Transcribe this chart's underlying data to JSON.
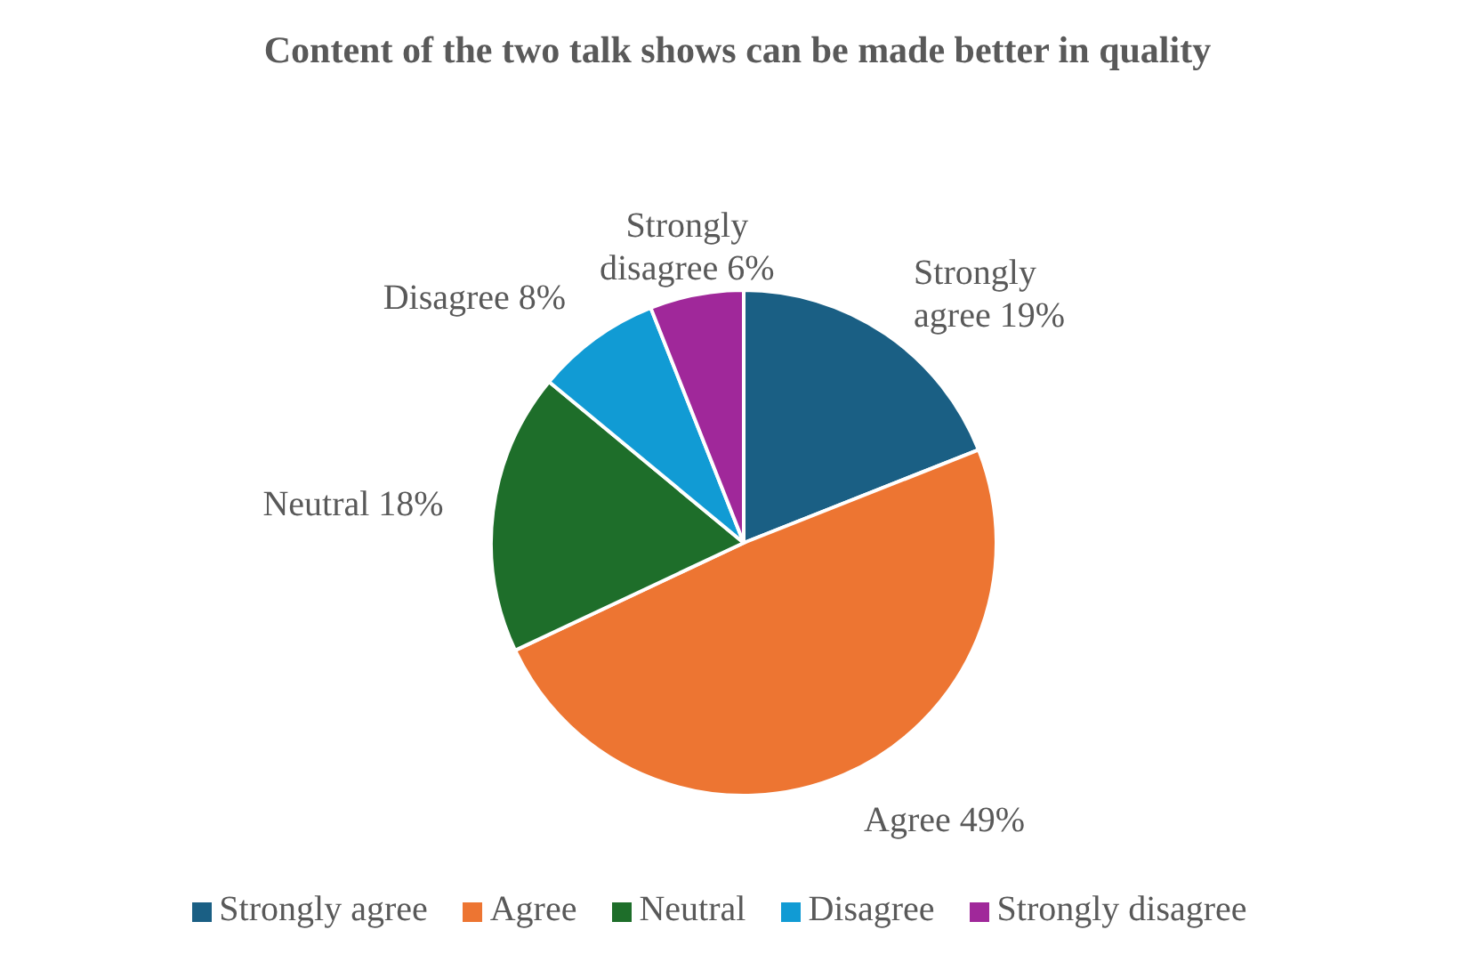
{
  "chart_data": {
    "type": "pie",
    "title": "Content of the two talk shows can be made better in quality",
    "categories": [
      "Strongly agree",
      "Agree",
      "Neutral",
      "Disagree",
      "Strongly disagree"
    ],
    "values": [
      19,
      49,
      18,
      8,
      6
    ],
    "value_labels": [
      "19%",
      "49%",
      "18%",
      "8%",
      "6%"
    ],
    "colors": [
      "#1a5f84",
      "#ed7532",
      "#1e6e2a",
      "#119bd4",
      "#a0289a"
    ],
    "legend": "bottom"
  }
}
